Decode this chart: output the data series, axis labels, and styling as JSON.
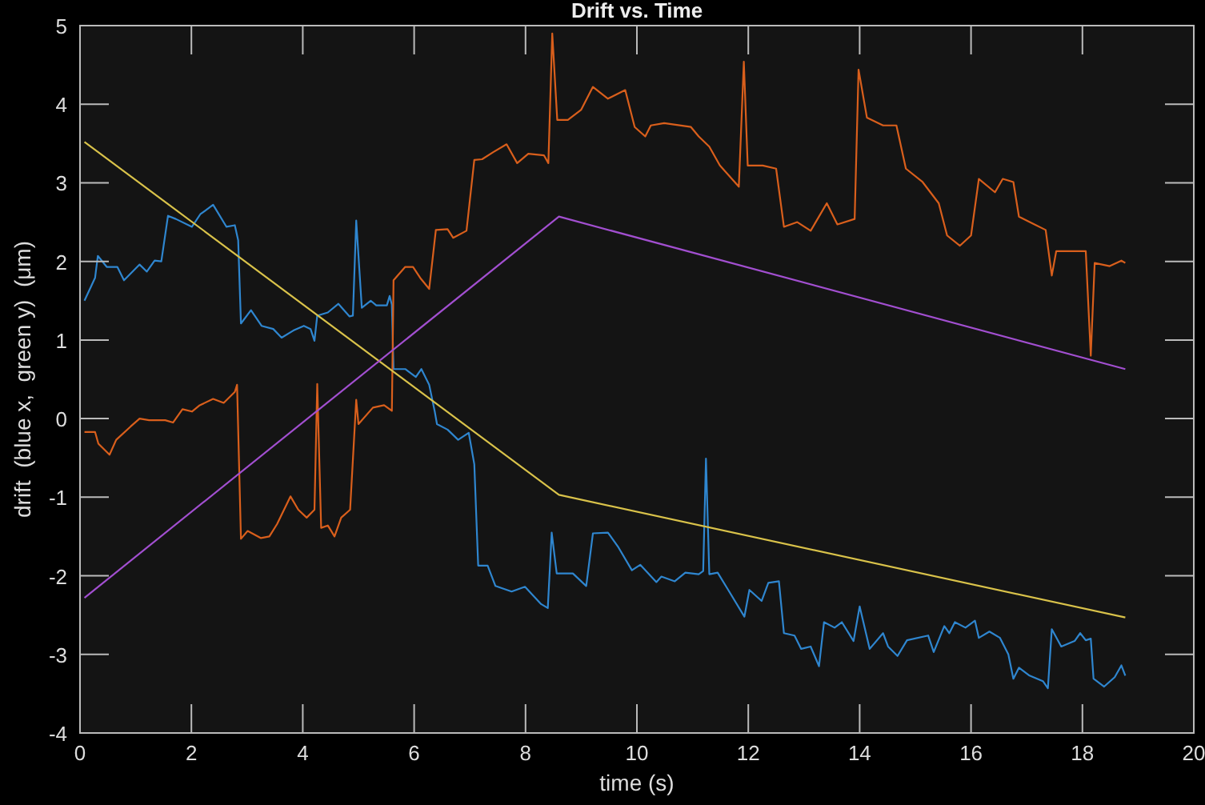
{
  "chart_data": {
    "type": "line",
    "title": "Drift vs. Time",
    "xlabel": "time (s)",
    "ylabel": "drift  (blue x,  green y)  (μm)",
    "xlim": [
      0,
      20
    ],
    "ylim": [
      -4,
      5
    ],
    "xticks": [
      0,
      2,
      4,
      6,
      8,
      10,
      12,
      14,
      16,
      18,
      20
    ],
    "yticks": [
      -4,
      -3,
      -2,
      -1,
      0,
      1,
      2,
      3,
      4,
      5
    ],
    "grid": false,
    "marker": "none",
    "line_style": "solid",
    "series": [
      {
        "color": "#2f86cf",
        "x": [
          0.08,
          0.27,
          0.32,
          0.48,
          0.67,
          0.79,
          1.07,
          1.2,
          1.34,
          1.46,
          1.58,
          1.72,
          2.01,
          2.16,
          2.39,
          2.63,
          2.78,
          2.84,
          2.89,
          3.07,
          3.26,
          3.47,
          3.62,
          3.83,
          4.02,
          4.14,
          4.21,
          4.26,
          4.45,
          4.64,
          4.84,
          4.9,
          4.96,
          5.06,
          5.22,
          5.32,
          5.51,
          5.56,
          5.6,
          5.63,
          5.84,
          6.03,
          6.13,
          6.27,
          6.37,
          6.41,
          6.6,
          6.79,
          6.98,
          7.08,
          7.15,
          7.32,
          7.46,
          7.75,
          7.99,
          8.28,
          8.4,
          8.47,
          8.56,
          8.85,
          9.09,
          9.21,
          9.48,
          9.67,
          9.91,
          10.06,
          10.35,
          10.44,
          10.68,
          10.87,
          11.11,
          11.19,
          11.24,
          11.3,
          11.45,
          11.64,
          11.93,
          12.02,
          12.24,
          12.36,
          12.55,
          12.64,
          12.83,
          12.95,
          13.12,
          13.27,
          13.36,
          13.55,
          13.68,
          13.89,
          14.0,
          14.18,
          14.42,
          14.51,
          14.68,
          14.85,
          15.23,
          15.33,
          15.52,
          15.61,
          15.71,
          15.9,
          16.07,
          16.14,
          16.33,
          16.52,
          16.67,
          16.76,
          16.86,
          17.05,
          17.29,
          17.38,
          17.45,
          17.62,
          17.86,
          17.96,
          18.06,
          18.15,
          18.2,
          18.39,
          18.58,
          18.7,
          18.77
        ],
        "values": [
          1.5,
          1.79,
          2.07,
          1.93,
          1.93,
          1.76,
          1.96,
          1.87,
          2.01,
          2.0,
          2.58,
          2.54,
          2.44,
          2.6,
          2.72,
          2.44,
          2.46,
          2.27,
          1.21,
          1.38,
          1.18,
          1.14,
          1.03,
          1.12,
          1.18,
          1.14,
          0.99,
          1.31,
          1.35,
          1.46,
          1.3,
          1.31,
          2.52,
          1.41,
          1.5,
          1.44,
          1.44,
          1.56,
          1.45,
          0.63,
          0.63,
          0.53,
          0.63,
          0.43,
          0.09,
          -0.07,
          -0.14,
          -0.27,
          -0.18,
          -0.58,
          -1.87,
          -1.87,
          -2.13,
          -2.2,
          -2.14,
          -2.36,
          -2.41,
          -1.45,
          -1.97,
          -1.97,
          -2.13,
          -1.46,
          -1.45,
          -1.64,
          -1.93,
          -1.86,
          -2.08,
          -2.01,
          -2.07,
          -1.96,
          -1.98,
          -1.94,
          -0.51,
          -1.98,
          -1.96,
          -2.18,
          -2.52,
          -2.18,
          -2.32,
          -2.09,
          -2.07,
          -2.73,
          -2.76,
          -2.93,
          -2.9,
          -3.15,
          -2.59,
          -2.66,
          -2.59,
          -2.83,
          -2.39,
          -2.93,
          -2.73,
          -2.9,
          -3.02,
          -2.82,
          -2.76,
          -2.97,
          -2.64,
          -2.73,
          -2.59,
          -2.66,
          -2.57,
          -2.79,
          -2.71,
          -2.79,
          -3.0,
          -3.31,
          -3.17,
          -3.27,
          -3.34,
          -3.43,
          -2.68,
          -2.9,
          -2.83,
          -2.73,
          -2.82,
          -2.8,
          -3.31,
          -3.41,
          -3.29,
          -3.14,
          -3.27
        ]
      },
      {
        "color": "#d95f1c",
        "x": [
          0.08,
          0.27,
          0.33,
          0.53,
          0.65,
          0.91,
          1.07,
          1.24,
          1.53,
          1.67,
          1.84,
          2.01,
          2.15,
          2.39,
          2.58,
          2.78,
          2.82,
          2.89,
          3.01,
          3.25,
          3.4,
          3.54,
          3.78,
          3.92,
          4.07,
          4.21,
          4.26,
          4.33,
          4.45,
          4.57,
          4.69,
          4.85,
          4.96,
          5.0,
          5.26,
          5.46,
          5.6,
          5.63,
          5.84,
          5.98,
          6.12,
          6.27,
          6.39,
          6.6,
          6.7,
          6.94,
          7.08,
          7.22,
          7.42,
          7.66,
          7.85,
          8.05,
          8.33,
          8.41,
          8.48,
          8.57,
          8.76,
          9.0,
          9.21,
          9.48,
          9.79,
          9.96,
          10.15,
          10.25,
          10.49,
          10.97,
          11.11,
          11.3,
          11.49,
          11.83,
          11.92,
          11.99,
          12.26,
          12.5,
          12.64,
          12.88,
          13.12,
          13.41,
          13.6,
          13.91,
          13.98,
          14.13,
          14.42,
          14.66,
          14.83,
          15.13,
          15.42,
          15.57,
          15.8,
          16.0,
          16.14,
          16.43,
          16.57,
          16.76,
          16.86,
          17.14,
          17.34,
          17.45,
          17.53,
          17.86,
          18.06,
          18.15,
          18.22,
          18.49,
          18.7,
          18.77
        ],
        "values": [
          -0.17,
          -0.17,
          -0.32,
          -0.46,
          -0.27,
          -0.1,
          0,
          -0.02,
          -0.02,
          -0.05,
          0.12,
          0.09,
          0.17,
          0.25,
          0.2,
          0.34,
          0.43,
          -1.53,
          -1.43,
          -1.52,
          -1.5,
          -1.34,
          -0.99,
          -1.16,
          -1.26,
          -1.16,
          0.44,
          -1.39,
          -1.36,
          -1.5,
          -1.26,
          -1.16,
          0.24,
          -0.07,
          0.14,
          0.17,
          0.1,
          1.76,
          1.93,
          1.93,
          1.78,
          1.65,
          2.4,
          2.41,
          2.3,
          2.39,
          3.29,
          3.3,
          3.39,
          3.49,
          3.25,
          3.37,
          3.35,
          3.25,
          4.9,
          3.8,
          3.8,
          3.93,
          4.22,
          4.07,
          4.18,
          3.71,
          3.59,
          3.73,
          3.76,
          3.71,
          3.59,
          3.46,
          3.22,
          2.95,
          4.54,
          3.22,
          3.22,
          3.18,
          2.44,
          2.5,
          2.39,
          2.74,
          2.47,
          2.54,
          4.44,
          3.83,
          3.73,
          3.73,
          3.18,
          3.01,
          2.74,
          2.33,
          2.2,
          2.33,
          3.05,
          2.88,
          3.05,
          3.01,
          2.57,
          2.47,
          2.4,
          1.82,
          2.13,
          2.13,
          2.13,
          0.8,
          1.98,
          1.94,
          2.01,
          1.98
        ]
      },
      {
        "color": "#d9c24a",
        "x": [
          0.08,
          8.6,
          18.77
        ],
        "values": [
          3.52,
          -0.97,
          -2.53
        ]
      },
      {
        "color": "#a24fd0",
        "x": [
          0.08,
          8.6,
          18.77
        ],
        "values": [
          -2.28,
          2.57,
          0.63
        ]
      }
    ]
  }
}
